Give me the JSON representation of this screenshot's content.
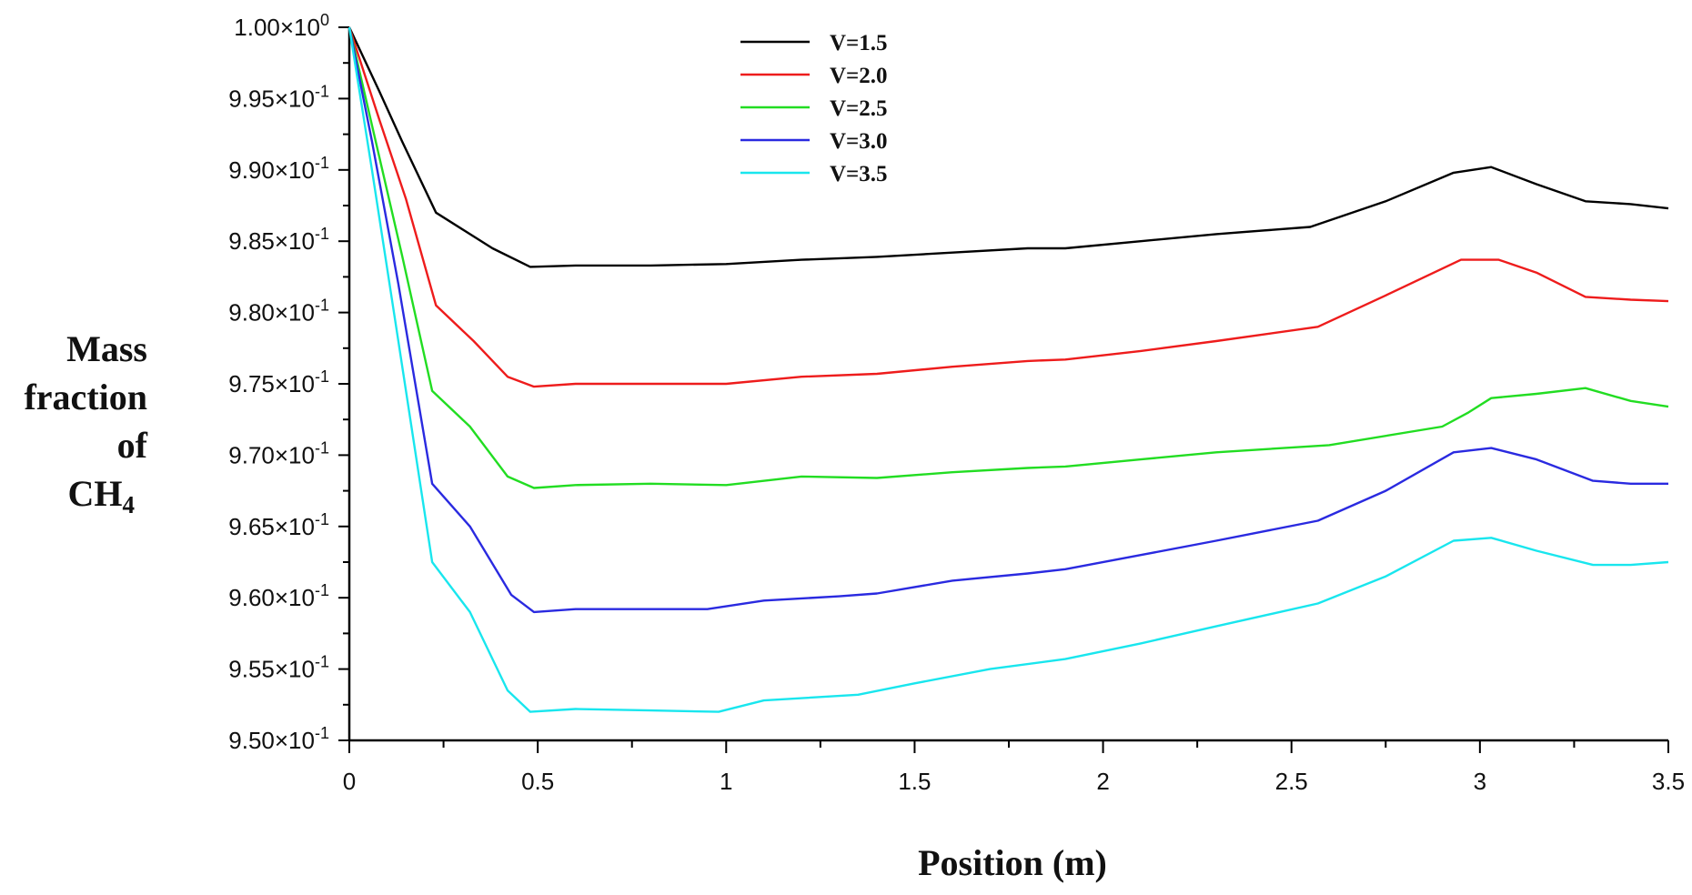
{
  "chart_data": {
    "type": "line",
    "title": "",
    "xlabel": "Position (m)",
    "ylabel_lines": [
      "Mass",
      "fraction",
      "of",
      "CH"
    ],
    "ylabel_subscript": "4",
    "xlim": [
      0,
      3.5
    ],
    "ylim": [
      0.95,
      1.0
    ],
    "x_ticks": [
      0,
      0.5,
      1,
      1.5,
      2,
      2.5,
      3,
      3.5
    ],
    "x_tick_labels": [
      "0",
      "0.5",
      "1",
      "1.5",
      "2",
      "2.5",
      "3",
      "3.5"
    ],
    "y_ticks": [
      0.95,
      0.955,
      0.96,
      0.965,
      0.97,
      0.975,
      0.98,
      0.985,
      0.99,
      0.995,
      1.0
    ],
    "y_tick_mantissas": [
      "9.50",
      "9.55",
      "9.60",
      "9.65",
      "9.70",
      "9.75",
      "9.80",
      "9.85",
      "9.90",
      "9.95",
      "1.00"
    ],
    "y_tick_exponents": [
      "-1",
      "-1",
      "-1",
      "-1",
      "-1",
      "-1",
      "-1",
      "-1",
      "-1",
      "-1",
      "0"
    ],
    "y_tick_times": "×10",
    "grid": false,
    "legend_position": "top-center",
    "series": [
      {
        "name": "V=1.5",
        "color": "#000000",
        "x": [
          0,
          0.08,
          0.14,
          0.23,
          0.38,
          0.48,
          0.6,
          0.8,
          1.0,
          1.2,
          1.4,
          1.6,
          1.8,
          1.9,
          2.1,
          2.3,
          2.55,
          2.75,
          2.93,
          3.03,
          3.15,
          3.28,
          3.4,
          3.5
        ],
        "y": [
          1.0,
          0.9955,
          0.992,
          0.987,
          0.9845,
          0.9832,
          0.9833,
          0.9833,
          0.9834,
          0.9837,
          0.9839,
          0.9842,
          0.9845,
          0.9845,
          0.985,
          0.9855,
          0.986,
          0.9878,
          0.9898,
          0.9902,
          0.989,
          0.9878,
          0.9876,
          0.9873
        ]
      },
      {
        "name": "V=2.0",
        "color": "#ee1c1c",
        "x": [
          0,
          0.08,
          0.15,
          0.23,
          0.33,
          0.42,
          0.49,
          0.6,
          0.8,
          1.0,
          1.2,
          1.4,
          1.6,
          1.8,
          1.9,
          2.1,
          2.3,
          2.57,
          2.75,
          2.95,
          3.05,
          3.15,
          3.28,
          3.4,
          3.5
        ],
        "y": [
          1.0,
          0.9935,
          0.988,
          0.9805,
          0.978,
          0.9755,
          0.9748,
          0.975,
          0.975,
          0.975,
          0.9755,
          0.9757,
          0.9762,
          0.9766,
          0.9767,
          0.9773,
          0.978,
          0.979,
          0.9812,
          0.9837,
          0.9837,
          0.9828,
          0.9811,
          0.9809,
          0.9808
        ]
      },
      {
        "name": "V=2.5",
        "color": "#22dd22",
        "x": [
          0,
          0.07,
          0.14,
          0.22,
          0.32,
          0.42,
          0.49,
          0.6,
          0.8,
          1.0,
          1.2,
          1.4,
          1.6,
          1.8,
          1.9,
          2.1,
          2.3,
          2.6,
          2.9,
          2.97,
          3.03,
          3.15,
          3.28,
          3.4,
          3.5
        ],
        "y": [
          1.0,
          0.992,
          0.984,
          0.9745,
          0.972,
          0.9685,
          0.9677,
          0.9679,
          0.968,
          0.9679,
          0.9685,
          0.9684,
          0.9688,
          0.9691,
          0.9692,
          0.9697,
          0.9702,
          0.9707,
          0.972,
          0.973,
          0.974,
          0.9743,
          0.9747,
          0.9738,
          0.9734
        ]
      },
      {
        "name": "V=3.0",
        "color": "#2a2ae0",
        "x": [
          0,
          0.06,
          0.13,
          0.22,
          0.32,
          0.43,
          0.49,
          0.6,
          0.8,
          0.95,
          1.1,
          1.3,
          1.4,
          1.6,
          1.8,
          1.9,
          2.1,
          2.3,
          2.57,
          2.75,
          2.93,
          3.03,
          3.15,
          3.3,
          3.4,
          3.5
        ],
        "y": [
          1.0,
          0.992,
          0.982,
          0.968,
          0.965,
          0.9602,
          0.959,
          0.9592,
          0.9592,
          0.9592,
          0.9598,
          0.9601,
          0.9603,
          0.9612,
          0.9617,
          0.962,
          0.963,
          0.964,
          0.9654,
          0.9675,
          0.9702,
          0.9705,
          0.9697,
          0.9682,
          0.968,
          0.968
        ]
      },
      {
        "name": "V=3.5",
        "color": "#19e6ee",
        "x": [
          0,
          0.06,
          0.13,
          0.22,
          0.32,
          0.42,
          0.48,
          0.6,
          0.8,
          0.98,
          1.1,
          1.35,
          1.5,
          1.7,
          1.9,
          2.1,
          2.3,
          2.57,
          2.75,
          2.93,
          3.03,
          3.15,
          3.3,
          3.4,
          3.5
        ],
        "y": [
          1.0,
          0.99,
          0.978,
          0.9625,
          0.959,
          0.9535,
          0.952,
          0.9522,
          0.9521,
          0.952,
          0.9528,
          0.9532,
          0.954,
          0.955,
          0.9557,
          0.9568,
          0.958,
          0.9596,
          0.9615,
          0.964,
          0.9642,
          0.9633,
          0.9623,
          0.9623,
          0.9625
        ]
      }
    ]
  }
}
